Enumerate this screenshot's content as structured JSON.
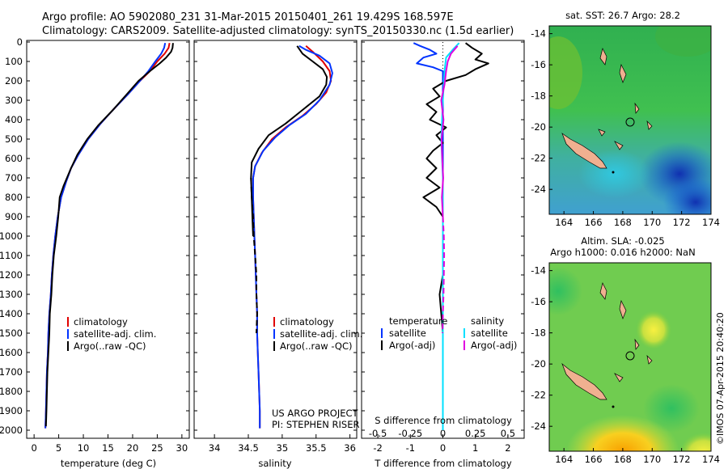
{
  "header": {
    "line1": "Argo profile: AO 5902080_231 31-Mar-2015 20150401_261 19.429S 168.597E",
    "line2": "Climatology: CARS2009. Satellite-adjusted climatology: synTS_20150330.nc (1.5d earlier)"
  },
  "colors": {
    "climatology": "#e00000",
    "satellite": "#0033ff",
    "argo": "#000000",
    "satellite_s": "#00e0ff",
    "argo_s": "#e000e0"
  },
  "legend_ts": {
    "climatology": "climatology",
    "satellite": "satellite-adj. clim.",
    "argo": "Argo(..raw -QC)"
  },
  "legend_diff": {
    "temperature": "temperature",
    "salinity": "salinity",
    "t_sat": "satellite",
    "t_argo": "Argo(-adj)",
    "s_sat": "satellite",
    "s_argo": "Argo(-adj)"
  },
  "credits": {
    "project": "US ARGO PROJECT",
    "pi": "PI: STEPHEN RISER"
  },
  "maps": {
    "top_title": "sat. SST: 26.7 Argo: 28.2",
    "bottom_title1": "Altim. SLA: -0.025",
    "bottom_title2": "Argo h1000: 0.016 h2000: NaN",
    "watermark": "©IMOS 07-Apr-2015 20:40:20"
  },
  "chart_data": [
    {
      "type": "line",
      "id": "temperature",
      "xlabel": "temperature (deg C)",
      "ylabel": "",
      "xlim": [
        -1.5,
        31.5
      ],
      "ylim": [
        2000,
        0
      ],
      "xticks": [
        0,
        5,
        10,
        15,
        20,
        25,
        30
      ],
      "yticks": [
        0,
        100,
        200,
        300,
        400,
        500,
        600,
        700,
        800,
        900,
        1000,
        1100,
        1200,
        1300,
        1400,
        1500,
        1600,
        1700,
        1800,
        1900,
        2000
      ],
      "series": [
        {
          "name": "climatology",
          "color": "#e00000",
          "dash": false,
          "points": [
            [
              27.5,
              5
            ],
            [
              27.3,
              30
            ],
            [
              26.5,
              60
            ],
            [
              25.0,
              100
            ],
            [
              23.5,
              150
            ],
            [
              21.5,
              200
            ],
            [
              19.0,
              270
            ],
            [
              16.0,
              350
            ],
            [
              13.5,
              420
            ],
            [
              11.0,
              500
            ],
            [
              9.0,
              580
            ],
            [
              7.5,
              650
            ],
            [
              6.5,
              720
            ],
            [
              5.5,
              800
            ],
            [
              4.8,
              900
            ],
            [
              4.3,
              1000
            ],
            [
              3.9,
              1100
            ],
            [
              3.6,
              1200
            ],
            [
              3.4,
              1300
            ],
            [
              3.1,
              1400
            ],
            [
              2.9,
              1500
            ],
            [
              2.8,
              1600
            ],
            [
              2.6,
              1700
            ],
            [
              2.5,
              1800
            ],
            [
              2.4,
              1900
            ],
            [
              2.3,
              1990
            ]
          ]
        },
        {
          "name": "satellite-adj. clim.",
          "color": "#0033ff",
          "dash": false,
          "points": [
            [
              26.6,
              5
            ],
            [
              26.4,
              30
            ],
            [
              25.8,
              60
            ],
            [
              24.6,
              100
            ],
            [
              23.2,
              150
            ],
            [
              21.5,
              200
            ],
            [
              19.0,
              270
            ],
            [
              16.0,
              350
            ],
            [
              13.5,
              420
            ],
            [
              11.0,
              500
            ],
            [
              9.0,
              580
            ],
            [
              7.5,
              650
            ],
            [
              6.5,
              720
            ],
            [
              5.5,
              800
            ],
            [
              4.8,
              900
            ],
            [
              4.3,
              1000
            ],
            [
              3.9,
              1100
            ],
            [
              3.6,
              1200
            ],
            [
              3.4,
              1300
            ],
            [
              3.1,
              1400
            ],
            [
              2.9,
              1500
            ],
            [
              2.8,
              1600
            ],
            [
              2.6,
              1700
            ],
            [
              2.5,
              1800
            ],
            [
              2.4,
              1900
            ],
            [
              2.3,
              1990
            ]
          ]
        },
        {
          "name": "Argo(..raw -QC)",
          "color": "#000000",
          "dash": false,
          "points": [
            [
              28.2,
              5
            ],
            [
              28.1,
              30
            ],
            [
              27.8,
              50
            ],
            [
              26.8,
              80
            ],
            [
              25.5,
              110
            ],
            [
              23.5,
              150
            ],
            [
              21.2,
              200
            ],
            [
              18.8,
              270
            ],
            [
              16.0,
              350
            ],
            [
              13.0,
              430
            ],
            [
              10.8,
              500
            ],
            [
              8.8,
              580
            ],
            [
              7.5,
              650
            ],
            [
              6.0,
              740
            ],
            [
              5.2,
              800
            ],
            [
              4.9,
              900
            ],
            [
              4.5,
              1000
            ],
            [
              4.0,
              1100
            ],
            [
              3.7,
              1200
            ],
            [
              3.5,
              1300
            ],
            [
              3.2,
              1400
            ],
            [
              3.1,
              1500
            ],
            [
              2.9,
              1600
            ],
            [
              2.7,
              1700
            ],
            [
              2.6,
              1800
            ],
            [
              2.5,
              1900
            ],
            [
              2.4,
              1980
            ]
          ]
        }
      ]
    },
    {
      "type": "line",
      "id": "salinity",
      "xlabel": "salinity",
      "ylabel": "",
      "xlim": [
        33.7,
        36.1
      ],
      "ylim": [
        2000,
        0
      ],
      "xticks": [
        34,
        34.5,
        35,
        35.5,
        36
      ],
      "xtick_labels": [
        "34",
        "34.5",
        "35",
        "35.5",
        "36"
      ],
      "series": [
        {
          "name": "climatology",
          "color": "#e00000",
          "dash": false,
          "points": [
            [
              35.35,
              20
            ],
            [
              35.45,
              50
            ],
            [
              35.6,
              100
            ],
            [
              35.7,
              150
            ],
            [
              35.72,
              200
            ],
            [
              35.65,
              260
            ],
            [
              35.5,
              320
            ],
            [
              35.3,
              380
            ],
            [
              35.05,
              440
            ],
            [
              34.85,
              500
            ],
            [
              34.7,
              570
            ],
            [
              34.6,
              640
            ],
            [
              34.57,
              700
            ],
            [
              34.57,
              800
            ],
            [
              34.58,
              900
            ],
            [
              34.59,
              1000
            ],
            [
              34.6,
              1100
            ],
            [
              34.61,
              1200
            ],
            [
              34.62,
              1300
            ],
            [
              34.63,
              1400
            ],
            [
              34.63,
              1500
            ],
            [
              34.64,
              1600
            ],
            [
              34.65,
              1700
            ],
            [
              34.66,
              1800
            ],
            [
              34.67,
              1900
            ],
            [
              34.67,
              1990
            ]
          ]
        },
        {
          "name": "satellite-adj. clim.",
          "color": "#0033ff",
          "dash": false,
          "points": [
            [
              35.25,
              20
            ],
            [
              35.35,
              40
            ],
            [
              35.55,
              70
            ],
            [
              35.7,
              110
            ],
            [
              35.74,
              160
            ],
            [
              35.7,
              220
            ],
            [
              35.55,
              300
            ],
            [
              35.35,
              370
            ],
            [
              35.1,
              430
            ],
            [
              34.9,
              490
            ],
            [
              34.72,
              560
            ],
            [
              34.6,
              640
            ],
            [
              34.57,
              700
            ],
            [
              34.57,
              800
            ],
            [
              34.58,
              900
            ],
            [
              34.59,
              1000
            ],
            [
              34.6,
              1100
            ],
            [
              34.61,
              1200
            ],
            [
              34.62,
              1300
            ],
            [
              34.63,
              1400
            ],
            [
              34.63,
              1500
            ],
            [
              34.64,
              1600
            ],
            [
              34.65,
              1700
            ],
            [
              34.66,
              1800
            ],
            [
              34.67,
              1900
            ],
            [
              34.67,
              1990
            ]
          ]
        },
        {
          "name": "Argo(..raw -QC)",
          "color": "#000000",
          "dash": false,
          "points": [
            [
              35.22,
              20
            ],
            [
              35.3,
              60
            ],
            [
              35.45,
              100
            ],
            [
              35.6,
              140
            ],
            [
              35.66,
              180
            ],
            [
              35.65,
              220
            ],
            [
              35.55,
              280
            ],
            [
              35.3,
              350
            ],
            [
              35.05,
              420
            ],
            [
              34.8,
              480
            ],
            [
              34.65,
              550
            ],
            [
              34.55,
              620
            ],
            [
              34.54,
              700
            ],
            [
              34.55,
              800
            ],
            [
              34.56,
              900
            ],
            [
              34.57,
              1000
            ]
          ]
        },
        {
          "name": "Argo dashed",
          "color": "#000000",
          "dash": true,
          "points": [
            [
              34.54,
              700
            ],
            [
              34.55,
              800
            ],
            [
              34.57,
              900
            ],
            [
              34.58,
              1000
            ],
            [
              34.6,
              1100
            ],
            [
              34.62,
              1200
            ],
            [
              34.62,
              1300
            ],
            [
              34.63,
              1400
            ],
            [
              34.62,
              1500
            ]
          ]
        }
      ]
    },
    {
      "type": "line",
      "id": "difference",
      "xlabel": "T difference from climatology",
      "xlabel_top": "S difference from climatology",
      "xlim": [
        -2.5,
        2.5
      ],
      "ylim": [
        2000,
        0
      ],
      "xticks": [
        -2,
        -1,
        0,
        1,
        2
      ],
      "xticks_s": [
        -0.5,
        -0.25,
        0,
        0.25,
        0.5
      ],
      "xtick_labels_s": [
        "-0.5",
        "-0.25",
        "0",
        "0.25",
        "0.5"
      ],
      "series": [
        {
          "name": "satellite",
          "color": "#0033ff",
          "dash": false,
          "points": [
            [
              -0.9,
              5
            ],
            [
              -0.7,
              20
            ],
            [
              -0.4,
              40
            ],
            [
              -0.2,
              60
            ],
            [
              -0.6,
              80
            ],
            [
              -0.8,
              110
            ],
            [
              -0.3,
              130
            ],
            [
              0.0,
              150
            ],
            [
              0.0,
              500
            ],
            [
              0.0,
              1000
            ],
            [
              0.0,
              1500
            ],
            [
              0.0,
              2000
            ]
          ]
        },
        {
          "name": "Argo(-adj)",
          "color": "#000000",
          "dash": false,
          "points": [
            [
              0.7,
              5
            ],
            [
              0.9,
              30
            ],
            [
              1.2,
              60
            ],
            [
              1.0,
              90
            ],
            [
              1.4,
              110
            ],
            [
              1.0,
              140
            ],
            [
              0.7,
              170
            ],
            [
              0.1,
              200
            ],
            [
              -0.3,
              240
            ],
            [
              -0.1,
              280
            ],
            [
              -0.5,
              320
            ],
            [
              -0.2,
              360
            ],
            [
              -0.4,
              400
            ],
            [
              0.1,
              440
            ],
            [
              -0.2,
              480
            ],
            [
              0.0,
              520
            ],
            [
              -0.3,
              560
            ],
            [
              -0.5,
              600
            ],
            [
              -0.2,
              650
            ],
            [
              -0.5,
              700
            ],
            [
              -0.1,
              750
            ],
            [
              -0.6,
              800
            ],
            [
              -0.2,
              850
            ],
            [
              0.0,
              900
            ],
            [
              0.0,
              1000
            ],
            [
              0.0,
              1200
            ],
            [
              -0.1,
              1300
            ],
            [
              0.0,
              1500
            ]
          ]
        },
        {
          "name": "satellite S",
          "color": "#00e0ff",
          "dash": false,
          "points": [
            [
              0.5,
              5
            ],
            [
              0.3,
              40
            ],
            [
              0.1,
              80
            ],
            [
              0.05,
              150
            ],
            [
              0.0,
              300
            ],
            [
              -0.05,
              500
            ],
            [
              0.0,
              700
            ],
            [
              0.0,
              1000
            ],
            [
              0.0,
              1500
            ],
            [
              0.0,
              2000
            ]
          ]
        },
        {
          "name": "Argo(-adj) S",
          "color": "#e000e0",
          "dash": false,
          "points": [
            [
              0.45,
              20
            ],
            [
              0.25,
              60
            ],
            [
              0.15,
              100
            ],
            [
              0.1,
              150
            ],
            [
              0.05,
              220
            ],
            [
              -0.05,
              300
            ],
            [
              0.02,
              400
            ],
            [
              -0.04,
              500
            ],
            [
              -0.02,
              600
            ],
            [
              0.01,
              700
            ],
            [
              -0.03,
              800
            ],
            [
              0.0,
              900
            ]
          ]
        },
        {
          "name": "Argo(-adj) S dashed",
          "color": "#e000e0",
          "dash": true,
          "points": [
            [
              0.0,
              900
            ],
            [
              0.03,
              1000
            ],
            [
              0.04,
              1100
            ],
            [
              0.03,
              1200
            ],
            [
              0.02,
              1300
            ],
            [
              0.0,
              1400
            ],
            [
              -0.01,
              1500
            ]
          ]
        }
      ]
    }
  ]
}
